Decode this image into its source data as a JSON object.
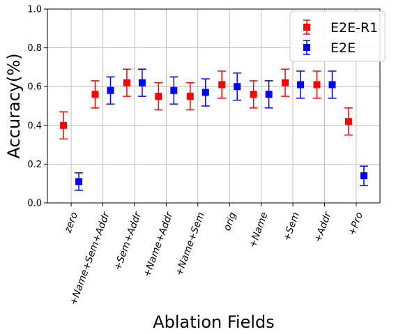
{
  "chart_data": {
    "type": "scatter",
    "xlabel": "Ablation Fields",
    "ylabel": "Accuracy(%)",
    "ylim": [
      0.0,
      1.0
    ],
    "yticks": [
      "0.0",
      "0.2",
      "0.4",
      "0.6",
      "0.8",
      "1.0"
    ],
    "grid": true,
    "legend_position": "top-right",
    "categories": [
      "zero",
      "+Name+Sem+Addr",
      "+Sem+Addr",
      "+Name+Addr",
      "+Name+Sem",
      "orig",
      "+Name",
      "+Sem",
      "+Addr",
      "+Pro"
    ],
    "series": [
      {
        "name": "E2E-R1",
        "color": "#ff0000",
        "values": [
          0.4,
          0.56,
          0.62,
          0.55,
          0.55,
          0.61,
          0.56,
          0.62,
          0.61,
          0.42
        ],
        "errors": [
          0.07,
          0.07,
          0.07,
          0.07,
          0.07,
          0.07,
          0.07,
          0.07,
          0.07,
          0.07
        ]
      },
      {
        "name": "E2E",
        "color": "#0000ff",
        "values": [
          0.11,
          0.58,
          0.62,
          0.58,
          0.57,
          0.6,
          0.56,
          0.61,
          0.61,
          0.14
        ],
        "errors": [
          0.045,
          0.07,
          0.07,
          0.07,
          0.07,
          0.07,
          0.07,
          0.07,
          0.07,
          0.05
        ]
      }
    ]
  }
}
